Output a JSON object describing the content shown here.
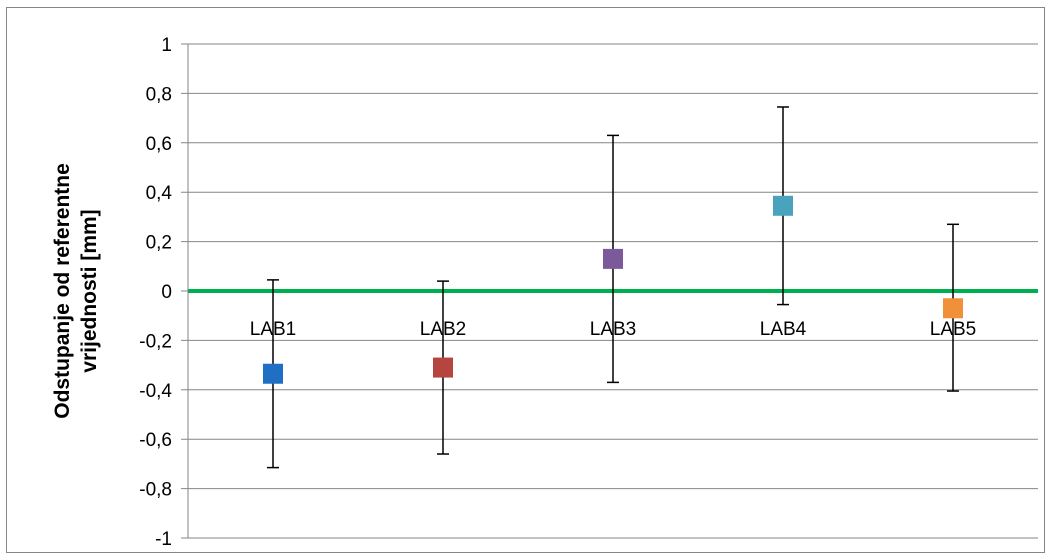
{
  "chart_data": {
    "type": "scatter",
    "title": "",
    "xlabel": "",
    "ylabel_lines": [
      "Odstupanje od referentne",
      "vrijednosti [mm]"
    ],
    "ylim": [
      -1,
      1
    ],
    "ytick_values": [
      1,
      0.8,
      0.6,
      0.4,
      0.2,
      0,
      -0.2,
      -0.4,
      -0.6,
      -0.8,
      -1
    ],
    "ytick_labels": [
      "1",
      "0,8",
      "0,6",
      "0,4",
      "0,2",
      "0",
      "-0,2",
      "-0,4",
      "-0,6",
      "-0,8",
      "-1"
    ],
    "grid": true,
    "legend": "none",
    "reference_line": {
      "value": 0,
      "color": "#00B050"
    },
    "points": [
      {
        "label": "LAB1",
        "value": -0.335,
        "err_low": -0.715,
        "err_high": 0.045,
        "color": "#1F6FC5"
      },
      {
        "label": "LAB2",
        "value": -0.31,
        "err_low": -0.66,
        "err_high": 0.04,
        "color": "#B5453E"
      },
      {
        "label": "LAB3",
        "value": 0.13,
        "err_low": -0.37,
        "err_high": 0.63,
        "color": "#7B5A9B"
      },
      {
        "label": "LAB4",
        "value": 0.345,
        "err_low": -0.055,
        "err_high": 0.745,
        "color": "#4AA3BC"
      },
      {
        "label": "LAB5",
        "value": -0.07,
        "err_low": -0.405,
        "err_high": 0.27,
        "color": "#F0913A"
      }
    ]
  }
}
